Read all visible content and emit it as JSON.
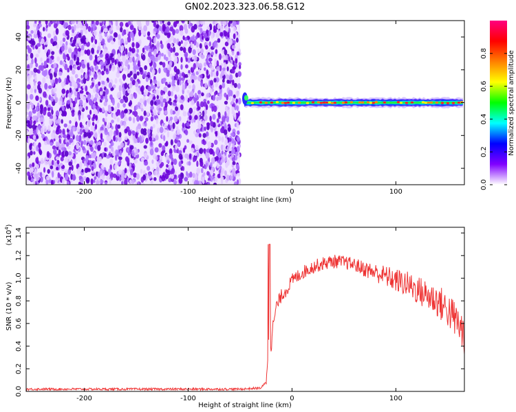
{
  "title": "GN02.2023.323.06.58.G12",
  "chart_data": [
    {
      "type": "heatmap",
      "xlabel": "Height of straight line (km)",
      "ylabel": "Frequency (Hz)",
      "xlim": [
        -256,
        166
      ],
      "ylim": [
        -50,
        50
      ],
      "x_ticks": [
        -200,
        -100,
        0,
        100
      ],
      "x_tick_labels": [
        "-200",
        "-100",
        "0",
        "100"
      ],
      "y_ticks": [
        -40,
        -20,
        0,
        20,
        40
      ],
      "y_tick_labels": [
        "-40",
        "-20",
        "0",
        "20",
        "40"
      ],
      "noise_region": [
        -256,
        -50
      ],
      "signal_region": [
        -50,
        166
      ],
      "signal_frequency_hz": 0,
      "colorbar": {
        "label": "Normalized spectral amplitude",
        "range": [
          0,
          1
        ],
        "ticks": [
          0,
          0.2,
          0.4,
          0.6,
          0.8
        ],
        "tick_labels": [
          "0.0",
          "0.2",
          "0.4",
          "0.6",
          "0.8"
        ],
        "colors": [
          "#ffffff",
          "#8000ff",
          "#0000ff",
          "#00ffff",
          "#00ff00",
          "#ffff00",
          "#ff8000",
          "#ff0000",
          "#ff0080"
        ]
      }
    },
    {
      "type": "line",
      "xlabel": "Height of straight line (km)",
      "ylabel": "SNR (10 * v/v)",
      "y_scale_label": "(x10",
      "y_scale_exponent": "4",
      "y_scale_suffix": ")",
      "xlim": [
        -256,
        166
      ],
      "ylim": [
        0,
        1.45
      ],
      "x_ticks": [
        -200,
        -100,
        0,
        100
      ],
      "x_tick_labels": [
        "-200",
        "-100",
        "0",
        "100"
      ],
      "y_ticks": [
        0,
        0.2,
        0.4,
        0.6,
        0.8,
        1.0,
        1.2,
        1.4
      ],
      "y_tick_labels": [
        "0.0",
        "0.2",
        "0.4",
        "0.6",
        "0.8",
        "1.0",
        "1.2",
        "1.4"
      ],
      "line_color": "#ee3333",
      "series": [
        {
          "x": [
            -256,
            -200,
            -150,
            -100,
            -50,
            -30,
            -25,
            -22,
            -20,
            -18,
            -15,
            -10,
            -5,
            0,
            10,
            20,
            30,
            40,
            50,
            60,
            70,
            80,
            90,
            100,
            110,
            120,
            130,
            140,
            150,
            160,
            166
          ],
          "values": [
            0.02,
            0.02,
            0.02,
            0.02,
            0.02,
            0.03,
            0.08,
            0.5,
            0.4,
            0.6,
            0.75,
            0.85,
            0.9,
            0.98,
            1.05,
            1.1,
            1.13,
            1.15,
            1.14,
            1.12,
            1.08,
            1.05,
            1.02,
            0.98,
            0.95,
            0.9,
            0.85,
            0.8,
            0.72,
            0.6,
            0.5
          ]
        }
      ]
    }
  ]
}
